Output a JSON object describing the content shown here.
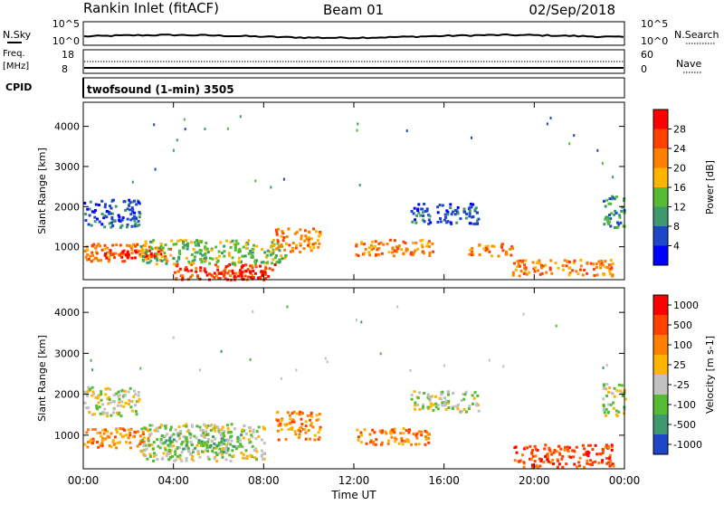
{
  "header": {
    "station": "Rankin Inlet (fitACF)",
    "beam": "Beam 01",
    "date": "02/Sep/2018"
  },
  "noise_panel": {
    "left_label": "N.Sky",
    "left_top": "10^5",
    "left_bottom": "10^0",
    "right_label": "N.Search",
    "right_top": "10^5",
    "right_bottom": "10^0"
  },
  "freq_panel": {
    "left_label_1": "Freq.",
    "left_label_2": "[MHz]",
    "left_top": "18",
    "left_bottom": "8",
    "right_label": "Nave",
    "right_top": "60",
    "right_bottom": "0"
  },
  "cpid_panel": {
    "label": "CPID",
    "text": "twofsound (1-min) 3505"
  },
  "axes": {
    "ylabel": "Slant Range [km]",
    "xlabel": "Time UT",
    "x_ticks": [
      "00:00",
      "04:00",
      "08:00",
      "12:00",
      "16:00",
      "20:00",
      "00:00"
    ],
    "y_ticks": [
      "1000",
      "2000",
      "3000",
      "4000"
    ]
  },
  "colors": {
    "red": "#ff0000",
    "orange": "#ff8000",
    "yellow": "#ffb400",
    "green": "#55bb33",
    "teal": "#3c9a6e",
    "blue": "#1e46c8",
    "gray": "#c0c0c0"
  },
  "chart_data": [
    {
      "type": "heatmap",
      "title": "",
      "xlabel": "Time UT",
      "ylabel": "Slant Range [km]",
      "xlim": [
        0,
        24
      ],
      "ylim": [
        180,
        4600
      ],
      "colorbar": {
        "label": "Power [dB]",
        "ticks": [
          "4",
          "8",
          "12",
          "16",
          "20",
          "24",
          "28"
        ],
        "range": [
          0,
          32
        ],
        "colors": [
          "#0000ff",
          "#1e46c8",
          "#3c9a6e",
          "#55bb33",
          "#ffb400",
          "#ff8000",
          "#ff4000",
          "#ff0000"
        ]
      },
      "regions": [
        {
          "t0": 0.0,
          "t1": 4.0,
          "r0": 650,
          "r1": 1100,
          "level": 5
        },
        {
          "t0": 0.5,
          "t1": 3.5,
          "r0": 750,
          "r1": 950,
          "level": 7
        },
        {
          "t0": 4.0,
          "t1": 8.5,
          "r0": 200,
          "r1": 600,
          "level": 6
        },
        {
          "t0": 5.5,
          "t1": 8.0,
          "r0": 200,
          "r1": 450,
          "level": 7
        },
        {
          "t0": 2.5,
          "t1": 9.0,
          "r0": 600,
          "r1": 1200,
          "level": 3
        },
        {
          "t0": 8.5,
          "t1": 10.5,
          "r0": 900,
          "r1": 1500,
          "level": 5
        },
        {
          "t0": 12.0,
          "t1": 15.5,
          "r0": 800,
          "r1": 1200,
          "level": 5
        },
        {
          "t0": 17.0,
          "t1": 19.0,
          "r0": 800,
          "r1": 1100,
          "level": 5
        },
        {
          "t0": 19.0,
          "t1": 23.5,
          "r0": 300,
          "r1": 700,
          "level": 5
        },
        {
          "t0": 0.0,
          "t1": 2.5,
          "r0": 1500,
          "r1": 2200,
          "level": 1
        },
        {
          "t0": 14.5,
          "t1": 17.5,
          "r0": 1600,
          "r1": 2100,
          "level": 1
        },
        {
          "t0": 23.0,
          "t1": 24.0,
          "r0": 1500,
          "r1": 2300,
          "level": 2
        }
      ]
    },
    {
      "type": "heatmap",
      "title": "",
      "xlabel": "Time UT",
      "ylabel": "Slant Range [km]",
      "xlim": [
        0,
        24
      ],
      "ylim": [
        180,
        4600
      ],
      "colorbar": {
        "label": "Velocity [m s-1]",
        "ticks": [
          "1000",
          "500",
          "100",
          "25",
          "-25",
          "-100",
          "-500",
          "-1000"
        ],
        "range": [
          -1000,
          1000
        ],
        "colors": [
          "#1e46c8",
          "#3c9a6e",
          "#55bb33",
          "#c0c0c0",
          "#ffb400",
          "#ff8000",
          "#ff4000",
          "#ff0000"
        ]
      },
      "regions": [
        {
          "t0": 0.0,
          "t1": 3.0,
          "r0": 700,
          "r1": 1200,
          "level": 5
        },
        {
          "t0": 2.5,
          "t1": 8.0,
          "r0": 400,
          "r1": 1300,
          "level": 3
        },
        {
          "t0": 3.5,
          "t1": 7.0,
          "r0": 600,
          "r1": 1100,
          "level": 2
        },
        {
          "t0": 0.0,
          "t1": 2.5,
          "r0": 1500,
          "r1": 2200,
          "level": 3
        },
        {
          "t0": 8.5,
          "t1": 10.5,
          "r0": 900,
          "r1": 1600,
          "level": 5
        },
        {
          "t0": 12.0,
          "t1": 15.5,
          "r0": 800,
          "r1": 1200,
          "level": 5
        },
        {
          "t0": 14.5,
          "t1": 17.5,
          "r0": 1600,
          "r1": 2100,
          "level": 3
        },
        {
          "t0": 19.0,
          "t1": 23.5,
          "r0": 250,
          "r1": 800,
          "level": 6
        },
        {
          "t0": 23.0,
          "t1": 24.0,
          "r0": 1500,
          "r1": 2300,
          "level": 3
        }
      ]
    }
  ]
}
